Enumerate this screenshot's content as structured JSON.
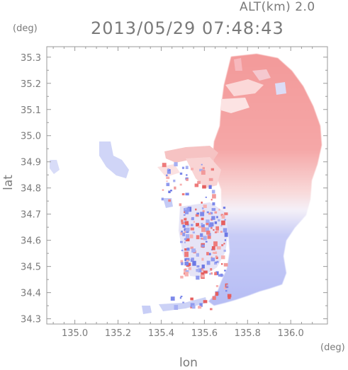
{
  "header": {
    "altitude_label": "ALT(km) 2.0",
    "timestamp": "2013/05/29 07:48:43"
  },
  "axes": {
    "y_unit": "(deg)",
    "x_unit": "(deg)",
    "xlabel": "lon",
    "ylabel": "lat"
  },
  "colors": {
    "positive": "#f08585",
    "negative": "#9da8f2",
    "axis": "#9a9a9a",
    "text": "#7a7a7a"
  },
  "chart_data": {
    "type": "heatmap",
    "title": "2013/05/29 07:48:43",
    "subtitle": "ALT(km) 2.0",
    "xlabel": "lon",
    "ylabel": "lat",
    "x_unit": "(deg)",
    "y_unit": "(deg)",
    "xlim": [
      134.87,
      136.17
    ],
    "ylim": [
      34.28,
      35.34
    ],
    "xticks": [
      135.0,
      135.2,
      135.4,
      135.6,
      135.8,
      136.0
    ],
    "xtick_labels": [
      "135.0",
      "135.2",
      "135.4",
      "135.6",
      "135.8",
      "136.0"
    ],
    "yticks": [
      34.3,
      34.4,
      34.5,
      34.6,
      34.7,
      34.8,
      34.9,
      35.0,
      35.1,
      35.2,
      35.3
    ],
    "ytick_labels": [
      "34.3",
      "34.4",
      "34.5",
      "34.6",
      "34.7",
      "34.8",
      "34.9",
      "35.0",
      "35.1",
      "35.2",
      "35.3"
    ],
    "grid": false,
    "legend": "none"
  }
}
